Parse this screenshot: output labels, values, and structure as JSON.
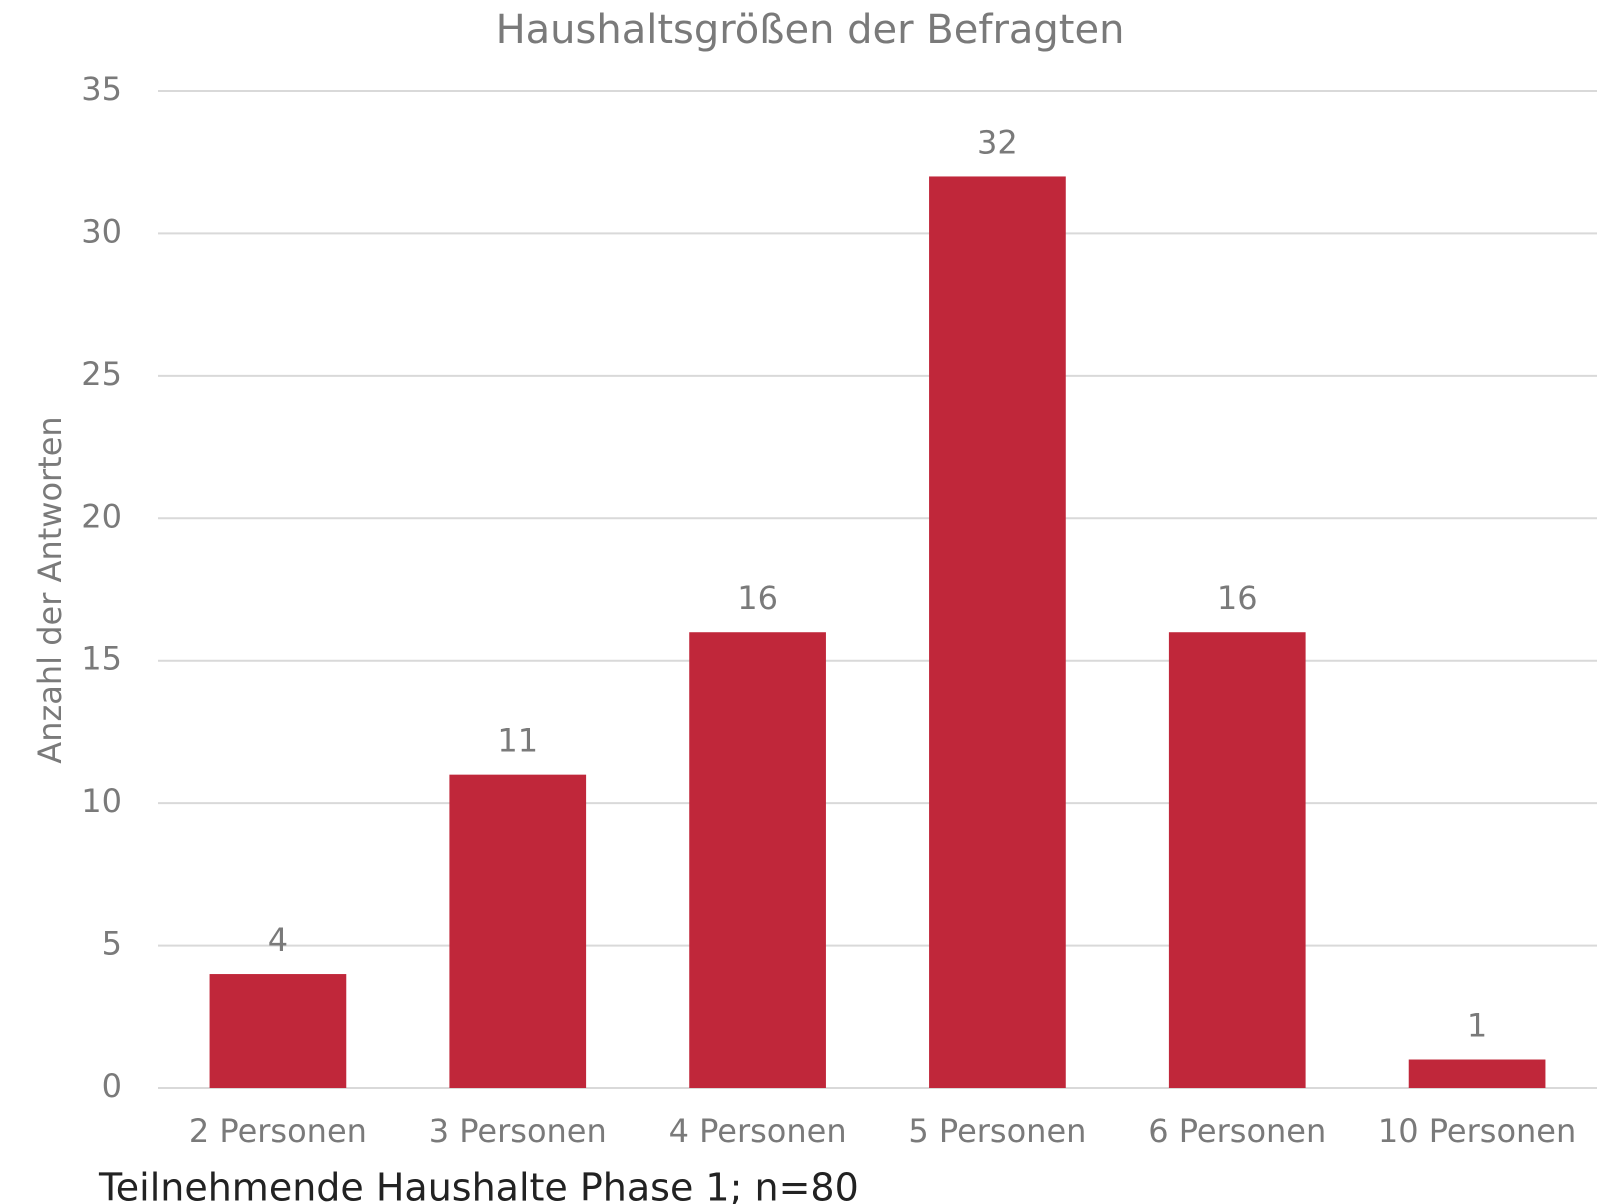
{
  "chart_data": {
    "type": "bar",
    "title": "Haushaltsgrößen der Befragten",
    "y_label": "Anzahl der Antworten",
    "categories": [
      "2 Personen",
      "3 Personen",
      "4 Personen",
      "5 Personen",
      "6 Personen",
      "10 Personen"
    ],
    "values": [
      4,
      11,
      16,
      32,
      16,
      1
    ],
    "color": "#c0273a",
    "ylim": [
      0,
      35
    ],
    "yticks": [
      0,
      5,
      10,
      15,
      20,
      25,
      30,
      35
    ],
    "grid": true,
    "note": "Teilnehmende Haushalte Phase 1; n=80"
  }
}
